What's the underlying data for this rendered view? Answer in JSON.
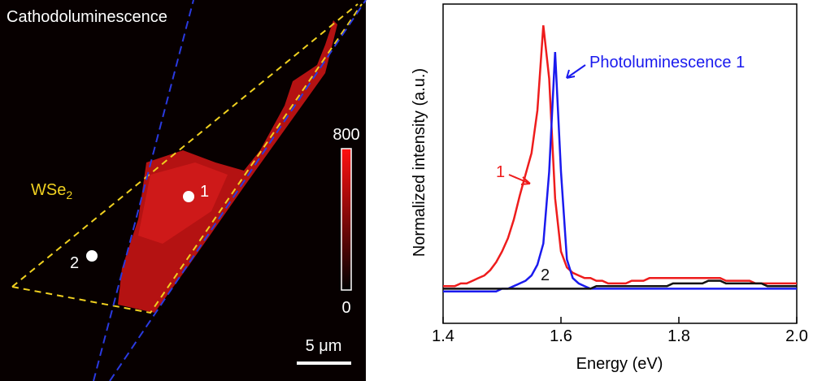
{
  "image": {
    "title": "Cathodoluminescence",
    "material": "WSe",
    "material_subscript": "2",
    "points": [
      "1",
      "2"
    ],
    "colorbar": {
      "max": 800,
      "min": 0
    },
    "scale_bar": "5 μm"
  },
  "chart_data": {
    "type": "line",
    "xlabel": "Energy (eV)",
    "ylabel": "Normalized intensity (a.u.)",
    "x": [
      1.4,
      1.41,
      1.42,
      1.43,
      1.44,
      1.45,
      1.46,
      1.47,
      1.48,
      1.49,
      1.5,
      1.51,
      1.52,
      1.53,
      1.54,
      1.55,
      1.56,
      1.57,
      1.58,
      1.59,
      1.6,
      1.61,
      1.62,
      1.63,
      1.64,
      1.65,
      1.66,
      1.67,
      1.68,
      1.69,
      1.7,
      1.71,
      1.72,
      1.73,
      1.74,
      1.75,
      1.76,
      1.77,
      1.78,
      1.79,
      1.8,
      1.81,
      1.82,
      1.83,
      1.84,
      1.85,
      1.86,
      1.87,
      1.88,
      1.89,
      1.9,
      1.91,
      1.92,
      1.93,
      1.94,
      1.95,
      1.96,
      1.97,
      1.98,
      1.99,
      2.0
    ],
    "series": [
      {
        "name": "1",
        "color": "#ee1c1c",
        "values": [
          0.02,
          0.02,
          0.02,
          0.03,
          0.03,
          0.04,
          0.05,
          0.06,
          0.08,
          0.11,
          0.15,
          0.2,
          0.27,
          0.36,
          0.44,
          0.52,
          0.68,
          1.0,
          0.8,
          0.35,
          0.15,
          0.09,
          0.07,
          0.06,
          0.05,
          0.05,
          0.04,
          0.04,
          0.03,
          0.03,
          0.03,
          0.03,
          0.04,
          0.04,
          0.04,
          0.05,
          0.05,
          0.05,
          0.05,
          0.05,
          0.05,
          0.05,
          0.05,
          0.05,
          0.05,
          0.05,
          0.05,
          0.05,
          0.04,
          0.04,
          0.04,
          0.04,
          0.04,
          0.03,
          0.03,
          0.03,
          0.03,
          0.03,
          0.03,
          0.03,
          0.03
        ]
      },
      {
        "name": "Photoluminescence 1",
        "color": "#1a1aee",
        "values": [
          0,
          0,
          0,
          0,
          0,
          0,
          0,
          0,
          0,
          0,
          0.01,
          0.01,
          0.02,
          0.03,
          0.04,
          0.06,
          0.1,
          0.18,
          0.45,
          0.9,
          0.45,
          0.12,
          0.05,
          0.03,
          0.02,
          0.01,
          0.01,
          0.01,
          0.01,
          0.01,
          0.01,
          0.01,
          0.01,
          0.01,
          0.01,
          0.01,
          0.01,
          0.01,
          0.01,
          0.01,
          0.01,
          0.01,
          0.01,
          0.01,
          0.01,
          0.01,
          0.01,
          0.01,
          0.01,
          0.01,
          0.01,
          0.01,
          0.01,
          0.01,
          0.01,
          0.01,
          0.01,
          0.01,
          0.01,
          0.01,
          0.01
        ]
      },
      {
        "name": "2",
        "color": "#111111",
        "values": [
          0.01,
          0.01,
          0.01,
          0.01,
          0.01,
          0.01,
          0.01,
          0.01,
          0.01,
          0.01,
          0.01,
          0.01,
          0.01,
          0.01,
          0.01,
          0.01,
          0.01,
          0.01,
          0.01,
          0.01,
          0.01,
          0.01,
          0.01,
          0.01,
          0.01,
          0.01,
          0.02,
          0.02,
          0.02,
          0.02,
          0.02,
          0.02,
          0.02,
          0.02,
          0.02,
          0.02,
          0.02,
          0.02,
          0.02,
          0.03,
          0.03,
          0.03,
          0.03,
          0.03,
          0.03,
          0.04,
          0.04,
          0.04,
          0.03,
          0.03,
          0.03,
          0.03,
          0.03,
          0.03,
          0.03,
          0.02,
          0.02,
          0.02,
          0.02,
          0.02,
          0.02
        ]
      }
    ],
    "xlim": [
      1.4,
      2.0
    ],
    "xticks": [
      1.4,
      1.6,
      1.8,
      {
        "value": 2.0,
        "label": "2.0"
      }
    ],
    "ylim": [
      -0.12,
      1.08
    ]
  }
}
